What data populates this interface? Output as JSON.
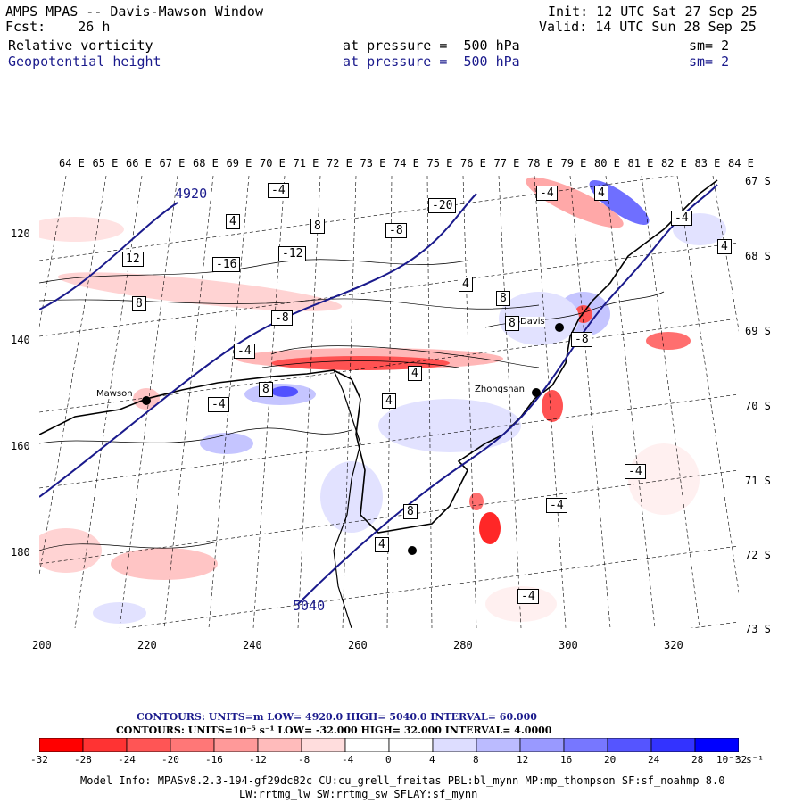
{
  "header": {
    "title": "AMPS MPAS -- Davis-Mawson Window",
    "forecast": "Fcst:    26 h",
    "init": "Init: 12 UTC Sat 27 Sep 25",
    "valid": "Valid: 14 UTC Sun 28 Sep 25",
    "field1_name": "Relative vorticity",
    "field1_level": "at pressure =  500 hPa",
    "field1_smooth": "sm= 2",
    "field2_name": "Geopotential height",
    "field2_level": "at pressure =  500 hPa",
    "field2_smooth": "sm= 2"
  },
  "axes": {
    "longitude_labels": [
      "64 E",
      "65 E",
      "66 E",
      "67 E",
      "68 E",
      "69 E",
      "70 E",
      "71 E",
      "72 E",
      "73 E",
      "74 E",
      "75 E",
      "76 E",
      "77 E",
      "78 E",
      "79 E",
      "80 E",
      "81 E",
      "82 E",
      "83 E",
      "84 E"
    ],
    "latitude_labels": [
      "67 S",
      "68 S",
      "69 S",
      "70 S",
      "71 S",
      "72 S",
      "73 S"
    ],
    "x_ticks": [
      "200",
      "220",
      "240",
      "260",
      "280",
      "300",
      "320"
    ],
    "y_ticks": [
      "120",
      "140",
      "160",
      "180"
    ]
  },
  "map_labels": {
    "stations": [
      "Mawson",
      "Davis",
      "Zhongshan"
    ],
    "height_contours": [
      "4920",
      "5040"
    ],
    "vorticity_values": [
      "-4",
      "4",
      "8",
      "-8",
      "12",
      "-12",
      "-16",
      "-20",
      "-4",
      "4",
      "8",
      "-8",
      "-4",
      "4",
      "8",
      "-4",
      "4",
      "8",
      "-8",
      "-4",
      "4",
      "8",
      "4",
      "-4",
      "8",
      "-4",
      "4",
      "-4"
    ]
  },
  "legend": {
    "height_line": "CONTOURS:  UNITS=m  LOW=  4920.0       HIGH=  5040.0       INTERVAL=   60.000",
    "vort_line": "CONTOURS:  UNITS=10⁻⁵ s⁻¹  LOW=  -32.000        HIGH=   32.000     INTERVAL=    4.0000",
    "colorbar_labels": [
      "-32",
      "-28",
      "-24",
      "-20",
      "-16",
      "-12",
      "-8",
      "-4",
      "0",
      "4",
      "8",
      "12",
      "16",
      "20",
      "24",
      "28",
      "32"
    ],
    "colorbar_unit": "10⁻⁵ s⁻¹",
    "colorbar_colors": [
      "#ff0000",
      "#ff3333",
      "#ff5555",
      "#ff7777",
      "#ff9999",
      "#ffbbbb",
      "#ffdddd",
      "#ffffff",
      "#ffffff",
      "#ddddff",
      "#bbbbff",
      "#9999ff",
      "#7777ff",
      "#5555ff",
      "#3333ff",
      "#0000ff"
    ]
  },
  "footer": {
    "model_info": "Model Info: MPASv8.2.3-194-gf29dc82c CU:cu_grell_freitas PBL:bl_mynn MP:mp_thompson SF:sf_noahmp 8.0",
    "model_info2": "LW:rrtmg_lw SW:rrtmg_sw SFLAY:sf_mynn"
  },
  "colors": {
    "height_contour": "#1a1a8c",
    "positive": "#ff0000",
    "negative": "#0000ff"
  }
}
